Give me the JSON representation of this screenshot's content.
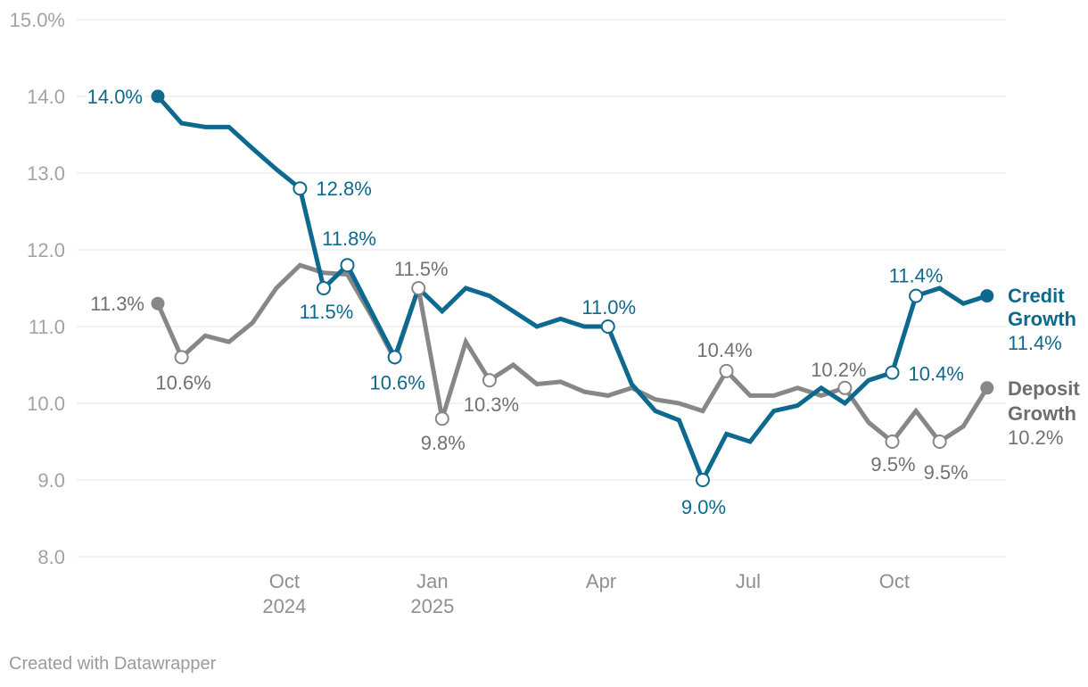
{
  "attribution": "Created with Datawrapper",
  "colors": {
    "credit": "#0e698e",
    "deposit_line": "#878787",
    "deposit_label": "#717171",
    "grid": "#e4e4e4",
    "y_tick_text": "#a3a3a3",
    "x_tick_text": "#8f8f8f",
    "background": "#ffffff"
  },
  "chart_data": {
    "type": "line",
    "title": "",
    "unit": "%",
    "grid": "horizontal",
    "legend_position": "right-of-line-ends",
    "y_axis": {
      "min": 8.0,
      "max": 15.0,
      "step": 1.0,
      "ticks": [
        {
          "v": 15,
          "label": "15.0%"
        },
        {
          "v": 14,
          "label": "14.0"
        },
        {
          "v": 13,
          "label": "13.0"
        },
        {
          "v": 12,
          "label": "12.0"
        },
        {
          "v": 11,
          "label": "11.0"
        },
        {
          "v": 10,
          "label": "10.0"
        },
        {
          "v": 9,
          "label": "9.0"
        },
        {
          "v": 8,
          "label": "8.0"
        }
      ]
    },
    "x_axis": {
      "description": "fortnightly observations, mid-2024 to late-2025",
      "ticks": [
        {
          "i": 5.34,
          "line1": "Oct",
          "line2": "2024"
        },
        {
          "i": 11.59,
          "line1": "Jan",
          "line2": "2025"
        },
        {
          "i": 18.71,
          "line1": "Apr",
          "line2": ""
        },
        {
          "i": 24.92,
          "line1": "Jul",
          "line2": ""
        },
        {
          "i": 31.09,
          "line1": "Oct",
          "line2": ""
        }
      ]
    },
    "series": [
      {
        "key": "deposit",
        "name": "Deposit Growth",
        "color": "#878787",
        "label_color": "#717171",
        "legend": {
          "lines": [
            "Deposit",
            "Growth"
          ],
          "value": "10.2%"
        },
        "values": [
          11.3,
          10.6,
          10.88,
          10.8,
          11.05,
          11.5,
          11.8,
          11.7,
          11.68,
          11.15,
          10.57,
          11.5,
          9.8,
          10.8,
          10.3,
          10.5,
          10.25,
          10.28,
          10.15,
          10.1,
          10.2,
          10.05,
          10.0,
          9.9,
          10.42,
          10.1,
          10.1,
          10.2,
          10.1,
          10.2,
          9.75,
          9.5,
          9.9,
          9.5,
          9.7,
          10.2
        ],
        "points": [
          {
            "i": 0,
            "marker": "filled",
            "text": "11.3%",
            "anchor": "end",
            "dx": -15,
            "dy": 0
          },
          {
            "i": 1,
            "marker": "open",
            "text": "10.6%",
            "anchor": "middle",
            "dx": 2,
            "dy": 28
          },
          {
            "i": 11,
            "marker": "open",
            "text": "11.5%",
            "anchor": "middle",
            "dx": 3,
            "dy": -22
          },
          {
            "i": 12,
            "marker": "open",
            "text": "9.8%",
            "anchor": "middle",
            "dx": 1,
            "dy": 27
          },
          {
            "i": 14,
            "marker": "open",
            "text": "10.3%",
            "anchor": "middle",
            "dx": 2,
            "dy": 27
          },
          {
            "i": 24,
            "marker": "open",
            "text": "10.4%",
            "anchor": "middle",
            "dx": -2,
            "dy": -24
          },
          {
            "i": 29,
            "marker": "open",
            "text": "10.2%",
            "anchor": "middle",
            "dx": -7,
            "dy": -21
          },
          {
            "i": 31,
            "marker": "open",
            "text": "9.5%",
            "anchor": "middle",
            "dx": 1,
            "dy": 25
          },
          {
            "i": 33,
            "marker": "open",
            "text": "9.5%",
            "anchor": "middle",
            "dx": 7,
            "dy": 34
          },
          {
            "i": 35,
            "marker": "filled"
          }
        ]
      },
      {
        "key": "credit",
        "name": "Credit Growth",
        "color": "#0e698e",
        "label_color": "#0e698e",
        "legend": {
          "lines": [
            "Credit",
            "Growth"
          ],
          "value": "11.4%"
        },
        "values": [
          14.0,
          13.65,
          13.6,
          13.6,
          13.32,
          13.05,
          12.8,
          11.5,
          11.8,
          11.2,
          10.6,
          11.5,
          11.2,
          11.5,
          11.4,
          11.2,
          11.0,
          11.1,
          11.0,
          11.0,
          10.25,
          9.9,
          9.78,
          9.0,
          9.6,
          9.5,
          9.9,
          9.97,
          10.2,
          10.0,
          10.3,
          10.4,
          11.4,
          11.5,
          11.3,
          11.4
        ],
        "points": [
          {
            "i": 0,
            "marker": "filled",
            "text": "14.0%",
            "anchor": "end",
            "dx": -17,
            "dy": 0
          },
          {
            "i": 6,
            "marker": "open",
            "text": "12.8%",
            "anchor": "start",
            "dx": 18,
            "dy": 0
          },
          {
            "i": 7,
            "marker": "open",
            "text": "11.5%",
            "anchor": "middle",
            "dx": 3,
            "dy": 26
          },
          {
            "i": 8,
            "marker": "open",
            "text": "11.8%",
            "anchor": "middle",
            "dx": 2,
            "dy": -30
          },
          {
            "i": 10,
            "marker": "open",
            "text": "10.6%",
            "anchor": "middle",
            "dx": 3,
            "dy": 28
          },
          {
            "i": 19,
            "marker": "open",
            "text": "11.0%",
            "anchor": "middle",
            "dx": 1,
            "dy": -22
          },
          {
            "i": 23,
            "marker": "open",
            "text": "9.0%",
            "anchor": "middle",
            "dx": 1,
            "dy": 30
          },
          {
            "i": 31,
            "marker": "open",
            "text": "10.4%",
            "anchor": "start",
            "dx": 18,
            "dy": 1
          },
          {
            "i": 32,
            "marker": "open",
            "text": "11.4%",
            "anchor": "middle",
            "dx": 0,
            "dy": -23
          },
          {
            "i": 35,
            "marker": "filled"
          }
        ]
      }
    ]
  }
}
